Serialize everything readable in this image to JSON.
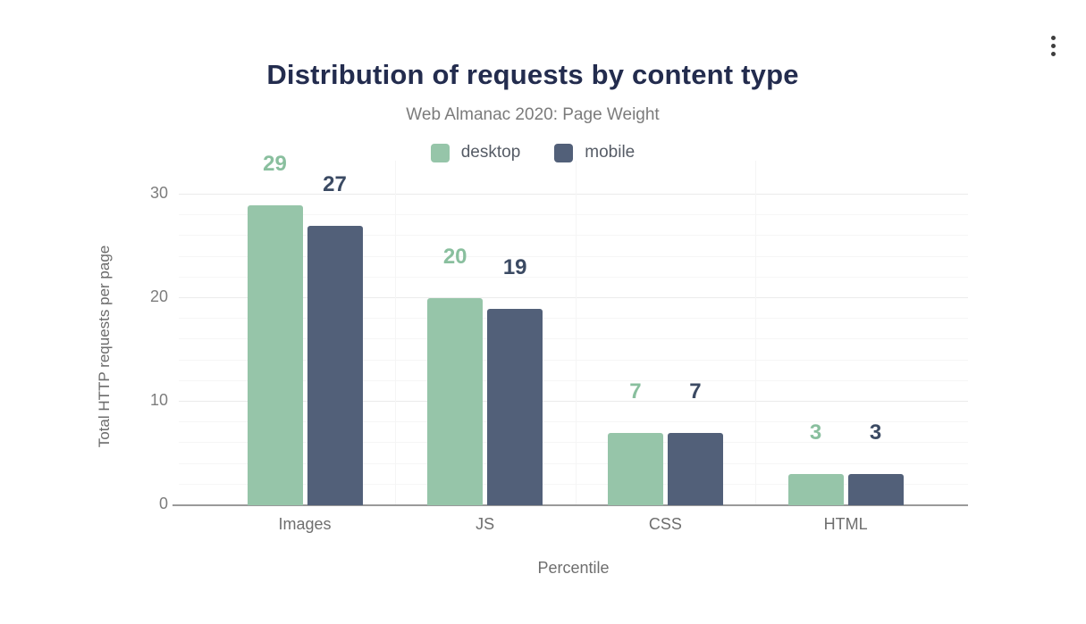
{
  "menu": {
    "kebab_icon": "more-options"
  },
  "chart_data": {
    "type": "bar",
    "title": "Distribution of requests by content type",
    "subtitle": "Web Almanac 2020: Page Weight",
    "xlabel": "Percentile",
    "ylabel": "Total HTTP requests per page",
    "categories": [
      "Images",
      "JS",
      "CSS",
      "HTML"
    ],
    "series": [
      {
        "name": "desktop",
        "color": "#96c5a9",
        "label_color": "#89bf9e",
        "values": [
          29,
          20,
          7,
          3
        ]
      },
      {
        "name": "mobile",
        "color": "#526079",
        "label_color": "#3b4a63",
        "values": [
          27,
          19,
          7,
          3
        ]
      }
    ],
    "yticks": [
      0,
      10,
      20,
      30
    ],
    "ylim": [
      0,
      30
    ],
    "grid": true,
    "legend_position": "top"
  },
  "colors": {
    "title": "#232c4e",
    "subtitle": "#7b7b7b",
    "axis_text": "#6e6e6e",
    "baseline": "#9a9a9a",
    "grid_major": "#ebebeb",
    "grid_minor": "#f6f6f6"
  }
}
